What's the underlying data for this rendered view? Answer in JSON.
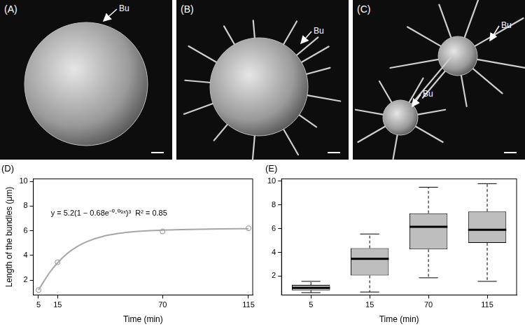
{
  "images": [
    {
      "label": "(A)",
      "annotations": [
        "Bu"
      ]
    },
    {
      "label": "(B)",
      "annotations": [
        "Bu"
      ]
    },
    {
      "label": "(C)",
      "annotations": [
        "Bu",
        "Bu"
      ]
    }
  ],
  "chart_data": [
    {
      "type": "line",
      "title": "(D)",
      "x_label": "Time (min)",
      "y_label": "Length of the bundles (μm)",
      "annotations": [
        "y = 5.2(1 − 0.68e⁻⁰·⁰⁹ˣ)³  R² = 0.85"
      ],
      "xlim": [
        2.3,
        117.2
      ],
      "xticks": [
        5,
        15,
        70,
        115
      ],
      "ylim": [
        0.8,
        10.2
      ],
      "yticks": [
        2,
        4,
        6,
        8,
        10
      ],
      "grid": false,
      "series": [
        {
          "type": "line",
          "color": "#a6a6a6",
          "x": [
            5,
            8,
            11,
            15,
            20,
            25,
            30,
            40,
            50,
            60,
            70,
            80,
            90,
            100,
            115
          ],
          "values": [
            1.2,
            1.95,
            2.65,
            3.4,
            4.15,
            4.7,
            5.1,
            5.6,
            5.85,
            5.98,
            6.05,
            6.1,
            6.13,
            6.15,
            6.17
          ]
        },
        {
          "type": "scatter",
          "color": "#8c8c8c",
          "marker": "circle",
          "x": [
            5,
            15,
            70,
            115
          ],
          "values": [
            1.2,
            3.45,
            5.95,
            6.2
          ]
        }
      ]
    },
    {
      "type": "boxplot",
      "title": "(E)",
      "x_label": "Time (min)",
      "categories": [
        "5",
        "15",
        "70",
        "115"
      ],
      "ylim": [
        0.4,
        10.2
      ],
      "yticks": [
        2,
        4,
        6,
        8,
        10
      ],
      "grid": false,
      "series": [
        {
          "color": "#bebebe",
          "min": [
            0.6,
            0.65,
            1.85,
            1.55
          ],
          "q1": [
            0.8,
            2.05,
            4.25,
            4.8
          ],
          "median": [
            1.0,
            3.45,
            6.15,
            5.9
          ],
          "q3": [
            1.25,
            4.35,
            7.3,
            7.45
          ],
          "max": [
            1.55,
            5.55,
            9.5,
            9.8
          ]
        }
      ]
    }
  ]
}
